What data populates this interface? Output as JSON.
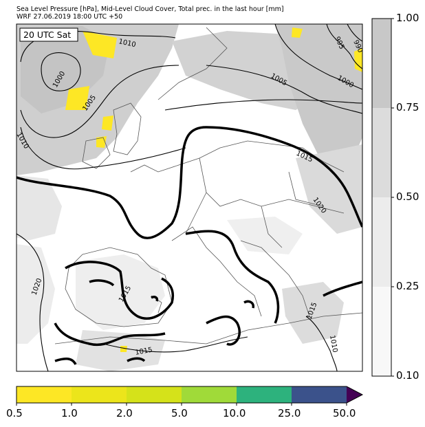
{
  "title_line1": "Sea Level Pressure [hPa], Mid-Level Cloud Cover, Total prec. in the last hour [mm]",
  "title_line2": "WRF 27.06.2019 18:00 UTC +50",
  "time_label": "20 UTC Sat",
  "isobar_labels": [
    "1010",
    "1000",
    "1005",
    "1010",
    "1005",
    "1000",
    "995",
    "990",
    "1015",
    "1020",
    "1020",
    "1015",
    "1015",
    "1015",
    "1010"
  ],
  "cloud_colorbar": {
    "labels": [
      "1.00",
      "0.75",
      "0.50",
      "0.25",
      "0.10"
    ],
    "colors": [
      "#c8c8c8",
      "#dcdcdc",
      "#ececec",
      "#f8f8f8"
    ]
  },
  "precip_colorbar": {
    "labels": [
      "0.5",
      "1.0",
      "2.0",
      "5.0",
      "10.0",
      "25.0",
      "50.0"
    ],
    "colors": [
      "#fde725",
      "#ece51b",
      "#d5e21a",
      "#a0da39",
      "#2db27d",
      "#3b528b",
      "#440154"
    ]
  }
}
